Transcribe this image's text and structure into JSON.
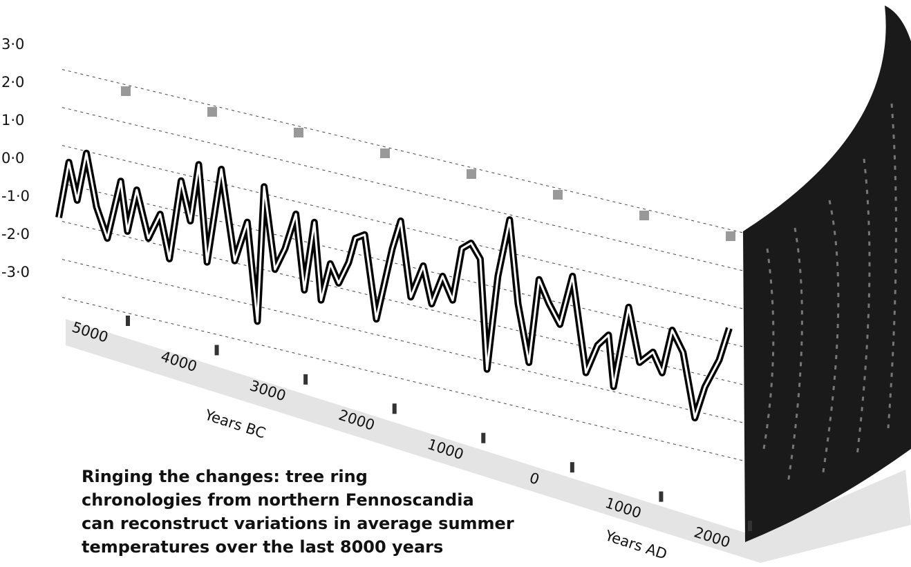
{
  "chart_data": {
    "type": "line",
    "title": [
      "Ringing the changes: tree ring",
      "chronologies from northern Fennoscandia",
      "can reconstruct variations in average summer",
      "temperatures over the last 8000 years"
    ],
    "xlabels": [
      "Years BC",
      "Years AD"
    ],
    "xlim": [
      -6000,
      2000
    ],
    "xticks": [
      {
        "value": -5000,
        "label": "5000"
      },
      {
        "value": -4000,
        "label": "4000"
      },
      {
        "value": -3000,
        "label": "3000"
      },
      {
        "value": -2000,
        "label": "2000"
      },
      {
        "value": -1000,
        "label": "1000"
      },
      0,
      {
        "value": 1000,
        "label": "1000"
      },
      {
        "value": 2000,
        "label": "2000"
      }
    ],
    "ylim": [
      -3,
      3
    ],
    "yticks": [
      {
        "value": 3,
        "label": "3·0"
      },
      {
        "value": 2,
        "label": "2·0"
      },
      {
        "value": 1,
        "label": "1·0"
      },
      {
        "value": 0,
        "label": "0·0"
      },
      {
        "value": -1,
        "label": "-1·0"
      },
      {
        "value": -2,
        "label": "-2·0"
      },
      {
        "value": -3,
        "label": "-3·0"
      }
    ],
    "grid": true,
    "x": [
      -6000,
      -5880,
      -5780,
      -5670,
      -5550,
      -5420,
      -5260,
      -5180,
      -5070,
      -4930,
      -4790,
      -4680,
      -4540,
      -4430,
      -4330,
      -4230,
      -4060,
      -3900,
      -3750,
      -3630,
      -3550,
      -3420,
      -3300,
      -3170,
      -3070,
      -2950,
      -2870,
      -2760,
      -2660,
      -2540,
      -2460,
      -2350,
      -2210,
      -2020,
      -1920,
      -1800,
      -1650,
      -1550,
      -1420,
      -1300,
      -1190,
      -1080,
      -970,
      -890,
      -760,
      -620,
      -520,
      -390,
      -270,
      -150,
      -20,
      130,
      290,
      430,
      560,
      620,
      800,
      930,
      1090,
      1200,
      1320,
      1450,
      1590,
      1710,
      1880,
      2000
    ],
    "series": [
      {
        "color": "#000000",
        "values": [
          -0.92,
          0.6,
          -0.35,
          0.95,
          -0.4,
          -1.16,
          0.43,
          -0.85,
          0.3,
          -0.9,
          -0.19,
          -1.31,
          0.82,
          -0.18,
          1.36,
          -1.16,
          1.38,
          -0.95,
          0.15,
          -2.4,
          1.19,
          -0.92,
          -0.31,
          0.67,
          -1.28,
          0.57,
          -1.44,
          -0.42,
          -0.88,
          -0.27,
          0.41,
          0.56,
          -1.59,
          0.37,
          1.15,
          -0.79,
          0.11,
          -0.84,
          -0.04,
          -0.61,
          0.81,
          1.01,
          0.65,
          -2.21,
          0.31,
          1.87,
          -0.29,
          -1.77,
          0.48,
          -0.09,
          -0.57,
          0.78,
          -1.68,
          -0.88,
          -0.54,
          -1.87,
          0.32,
          -1.07,
          -0.71,
          -1.2,
          -0.01,
          -0.53,
          -2.18,
          -1.3,
          -0.5,
          0.4
        ]
      }
    ]
  }
}
